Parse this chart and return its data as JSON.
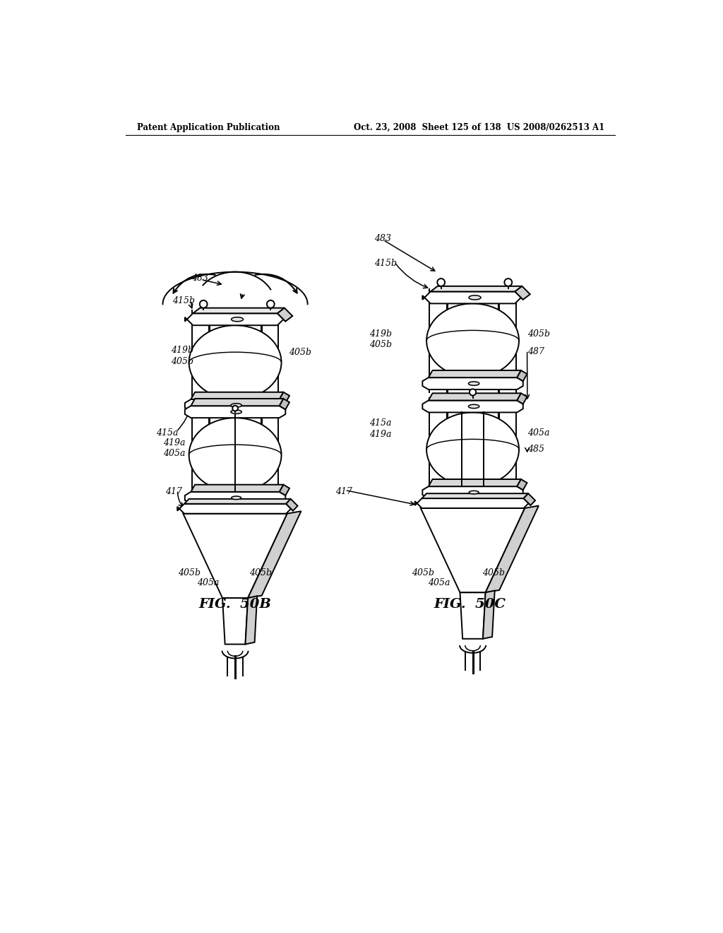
{
  "title_left": "Patent Application Publication",
  "title_right": "Oct. 23, 2008  Sheet 125 of 138  US 2008/0262513 A1",
  "fig_label_left": "FIG.  50B",
  "fig_label_right": "FIG.  50C",
  "background_color": "#ffffff",
  "line_color": "#000000"
}
